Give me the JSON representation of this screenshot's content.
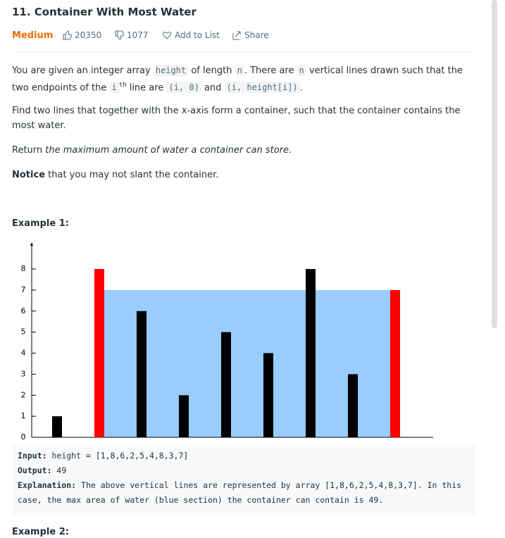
{
  "header": {
    "title": "11. Container With Most Water",
    "difficulty": "Medium",
    "likes": 20350,
    "dislikes": 1077,
    "add_to_list": "Add to List",
    "share": "Share"
  },
  "paragraphs": [
    [
      {
        "text": "You are given an integer array "
      },
      {
        "text": "height",
        "style": "code"
      },
      {
        "text": " of length "
      },
      {
        "text": "n",
        "style": "code"
      },
      {
        "text": ". There are "
      },
      {
        "text": "n",
        "style": "code"
      },
      {
        "text": " vertical lines drawn such that the two endpoints of the "
      },
      {
        "text": "i",
        "style": "code"
      },
      {
        "text": "th",
        "style": "sup"
      },
      {
        "text": " line are "
      },
      {
        "text": "(i, 0)",
        "style": "code"
      },
      {
        "text": " and "
      },
      {
        "text": "(i, height[i])",
        "style": "code"
      },
      {
        "text": "."
      }
    ],
    [
      {
        "text": "Find two lines that together with the x-axis form a container, such that the container contains the most water."
      }
    ],
    [
      {
        "text": "Return "
      },
      {
        "text": "the maximum amount of water a container can store",
        "style": "italic"
      },
      {
        "text": "."
      }
    ],
    [
      {
        "text": "Notice",
        "style": "bold"
      },
      {
        "text": " that you may not slant the container."
      }
    ]
  ],
  "example1": {
    "heading": "Example 1:",
    "figure": {
      "type": "bar",
      "values": [
        1,
        8,
        6,
        2,
        5,
        4,
        8,
        3,
        7
      ],
      "colors": [
        "#000000",
        "#ff0000",
        "#000000",
        "#000000",
        "#000000",
        "#000000",
        "#000000",
        "#000000",
        "#ff0000"
      ],
      "ylim": [
        0,
        8
      ],
      "yticks": [
        0,
        1,
        2,
        3,
        4,
        5,
        6,
        7,
        8
      ],
      "water": {
        "from": 1,
        "to": 8,
        "level": 7,
        "color": "#99ccff"
      }
    },
    "code": [
      [
        {
          "text": "Input:",
          "style": "bold"
        },
        {
          "text": " height = [1,8,6,2,5,4,8,3,7]"
        }
      ],
      [
        {
          "text": "Output:",
          "style": "bold"
        },
        {
          "text": " 49"
        }
      ],
      [
        {
          "text": "Explanation:",
          "style": "bold"
        },
        {
          "text": " The above vertical lines are represented by array [1,8,6,2,5,4,8,3,7]. In this case, the max area of water (blue section) the container can contain is 49."
        }
      ]
    ]
  },
  "example2": {
    "heading": "Example 2:"
  }
}
